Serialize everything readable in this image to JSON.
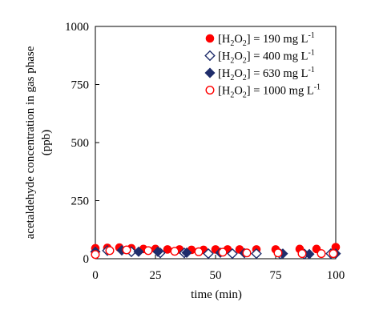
{
  "chart_data": {
    "type": "scatter",
    "xlabel": "time (min)",
    "ylabel_line1": "acetaldehyde concentration in gas phase",
    "ylabel_line2": "(ppb)",
    "xlim": [
      0,
      100
    ],
    "ylim": [
      0,
      1000
    ],
    "xticks": [
      0,
      25,
      50,
      75,
      100
    ],
    "yticks": [
      0,
      250,
      500,
      750,
      1000
    ],
    "grid": false,
    "legend_position": "top-right",
    "series": [
      {
        "name": "[H2O2] = 190 mg L-1",
        "legend": {
          "pre": "[H",
          "sub1": "2",
          "mid": "O",
          "sub2": "2",
          "post": "] = 190  mg L",
          "sup": "-1"
        },
        "marker": "circle-filled",
        "color": "#ff0000",
        "x": [
          0,
          5,
          10,
          15,
          20,
          25,
          30,
          35,
          40,
          45,
          50,
          55,
          60,
          67,
          75,
          85,
          92,
          100
        ],
        "y": [
          45,
          47,
          48,
          45,
          42,
          42,
          40,
          40,
          38,
          38,
          40,
          40,
          40,
          40,
          40,
          42,
          42,
          50
        ]
      },
      {
        "name": "[H2O2] = 400 mg L-1",
        "legend": {
          "pre": "[H",
          "sub1": "2",
          "mid": "O",
          "sub2": "2",
          "post": "] = 400  mg L",
          "sup": "-1"
        },
        "marker": "diamond-open",
        "color": "#1f2d6b",
        "x": [
          5,
          15,
          27,
          37,
          47,
          57,
          67,
          77,
          87,
          98
        ],
        "y": [
          35,
          30,
          25,
          25,
          22,
          22,
          22,
          20,
          20,
          22
        ]
      },
      {
        "name": "[H2O2] = 630 mg L-1",
        "legend": {
          "pre": "[H",
          "sub1": "2",
          "mid": "O",
          "sub2": "2",
          "post": "] = 630  mg L",
          "sup": "-1"
        },
        "marker": "diamond-filled",
        "color": "#1f2d6b",
        "x": [
          0,
          11,
          18,
          26,
          38,
          52,
          62,
          78,
          89,
          100
        ],
        "y": [
          30,
          36,
          30,
          30,
          26,
          26,
          24,
          22,
          20,
          22
        ]
      },
      {
        "name": "[H2O2] = 1000 mg L-1",
        "legend": {
          "pre": "[H",
          "sub1": "2",
          "mid": "O",
          "sub2": "2",
          "post": "] = 1000 mg L",
          "sup": "-1"
        },
        "marker": "circle-open",
        "color": "#ff0000",
        "x": [
          0,
          6,
          13,
          22,
          33,
          43,
          53,
          63,
          76,
          86,
          94,
          99
        ],
        "y": [
          18,
          35,
          38,
          35,
          32,
          30,
          28,
          25,
          25,
          22,
          22,
          22
        ]
      }
    ]
  }
}
